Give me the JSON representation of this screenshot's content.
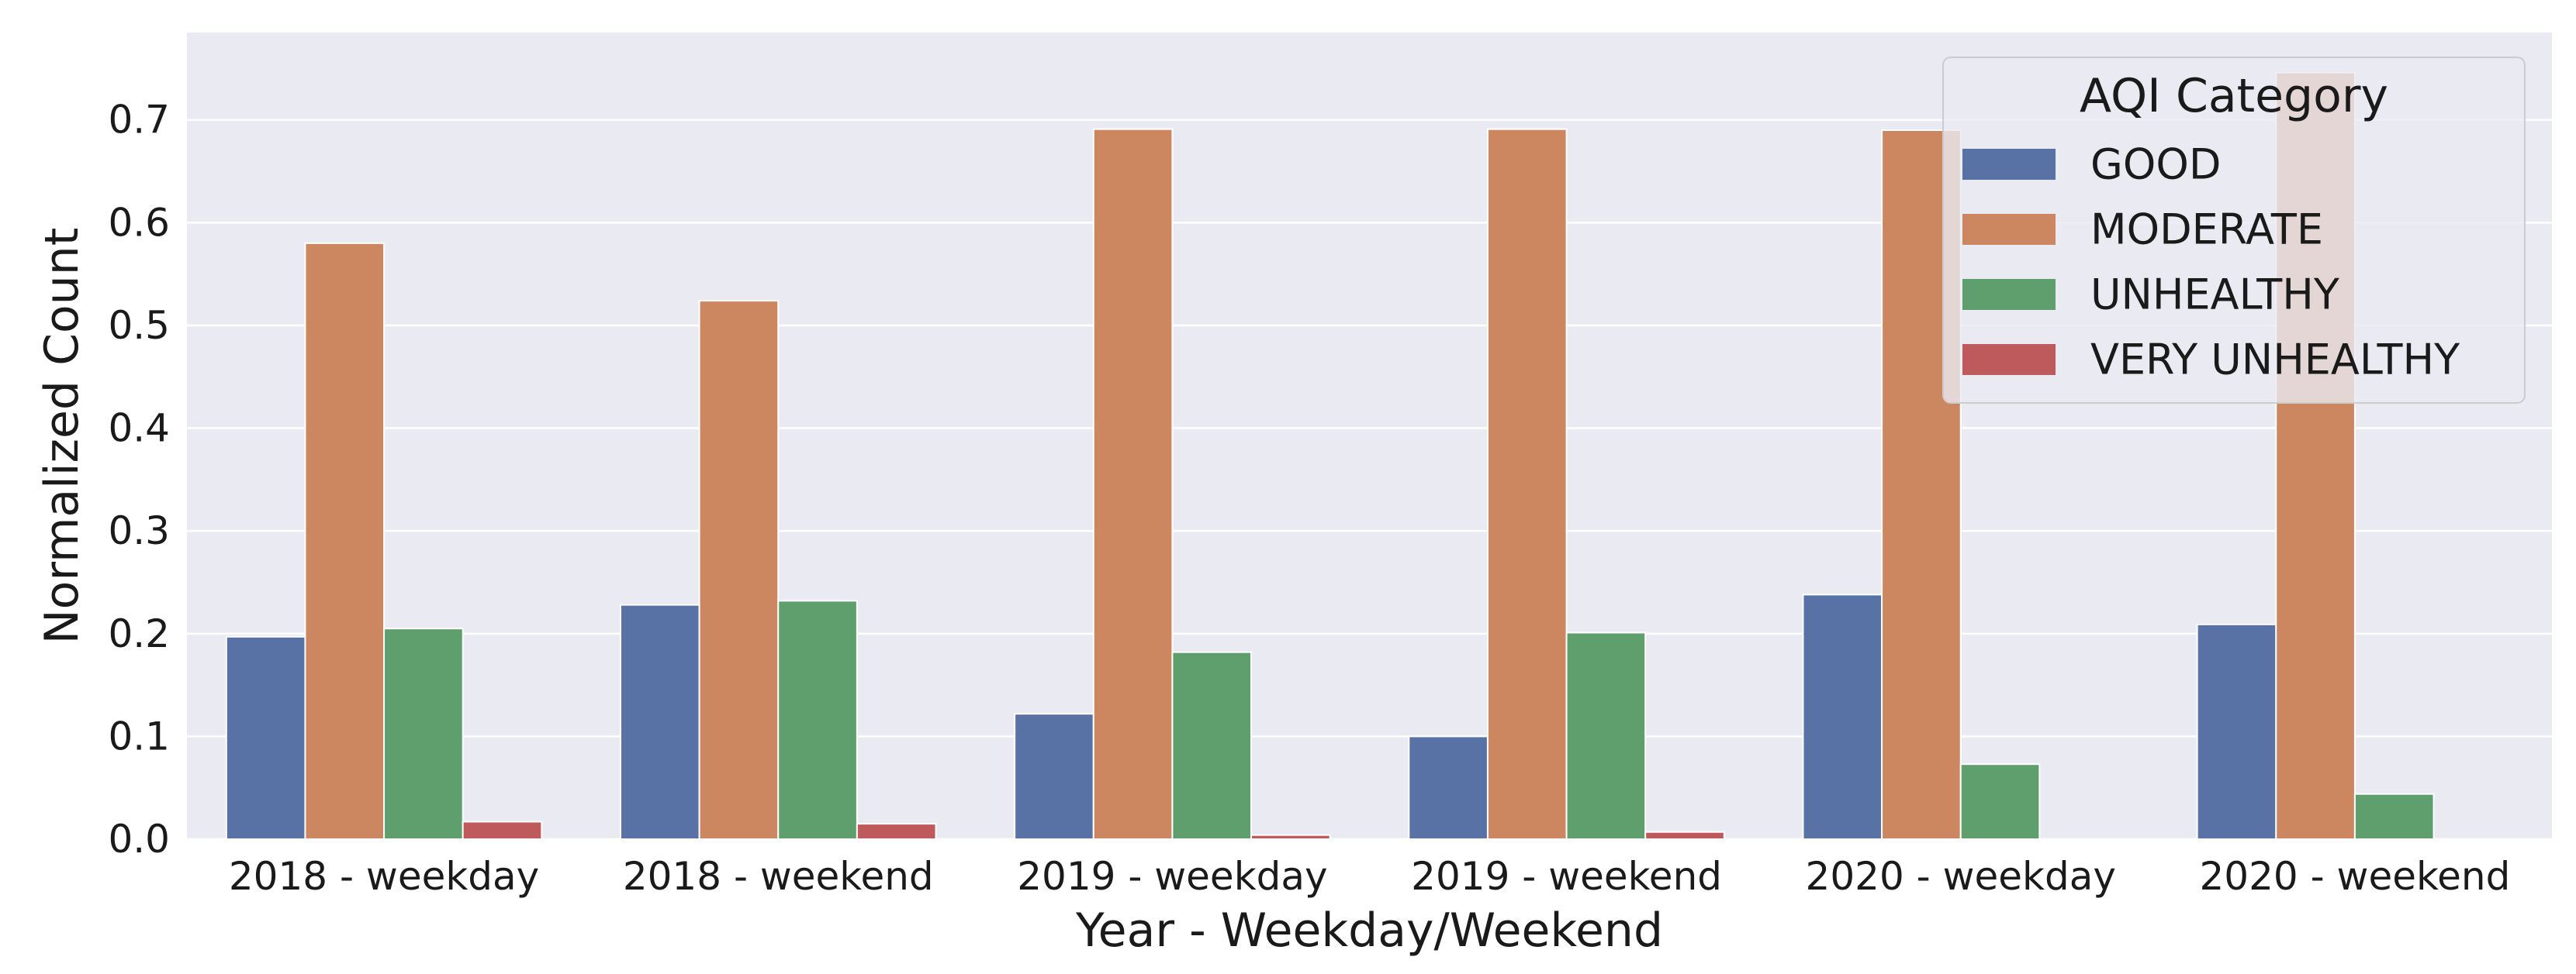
{
  "chart_data": {
    "type": "bar",
    "title": "",
    "xlabel": "Year - Weekday/Weekend",
    "ylabel": "Normalized Count",
    "categories": [
      "2018 - weekday",
      "2018 - weekend",
      "2019 - weekday",
      "2019 - weekend",
      "2020 - weekday",
      "2020 - weekend"
    ],
    "ylim": [
      0,
      0.785
    ],
    "yticks": [
      "0.0",
      "0.1",
      "0.2",
      "0.3",
      "0.4",
      "0.5",
      "0.6",
      "0.7"
    ],
    "grid": true,
    "legend": {
      "title": "AQI Category",
      "placement": "top-right"
    },
    "series": [
      {
        "name": "GOOD",
        "color": "#5872a6",
        "values": [
          0.197,
          0.228,
          0.122,
          0.1,
          0.238,
          0.209
        ]
      },
      {
        "name": "MODERATE",
        "color": "#cc8761",
        "values": [
          0.58,
          0.524,
          0.691,
          0.691,
          0.69,
          0.746
        ]
      },
      {
        "name": "UNHEALTHY",
        "color": "#5f9f6e",
        "values": [
          0.205,
          0.232,
          0.182,
          0.201,
          0.073,
          0.044
        ]
      },
      {
        "name": "VERY UNHEALTHY",
        "color": "#bf5a5c",
        "values": [
          0.017,
          0.015,
          0.004,
          0.007,
          0.0,
          0.0
        ]
      }
    ],
    "background_color": "#eaeaf2",
    "grid_color": "#ffffff"
  }
}
